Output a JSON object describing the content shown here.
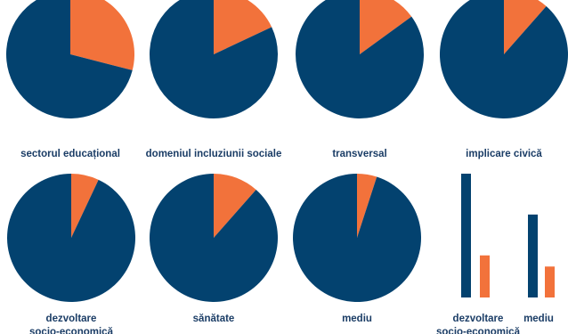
{
  "colors": {
    "primary": "#03426f",
    "accent": "#f2723b"
  },
  "chart_data": [
    {
      "type": "pie",
      "label": "sectorul educațional",
      "slices": [
        {
          "name": "orange",
          "value": 0.29
        },
        {
          "name": "blue",
          "value": 0.71
        }
      ]
    },
    {
      "type": "pie",
      "label": "domeniul incluziunii sociale",
      "slices": [
        {
          "name": "orange",
          "value": 0.18
        },
        {
          "name": "blue",
          "value": 0.82
        }
      ]
    },
    {
      "type": "pie",
      "label": "transversal",
      "slices": [
        {
          "name": "orange",
          "value": 0.15
        },
        {
          "name": "blue",
          "value": 0.85
        }
      ]
    },
    {
      "type": "pie",
      "label": "implicare civică",
      "slices": [
        {
          "name": "orange",
          "value": 0.115
        },
        {
          "name": "blue",
          "value": 0.885
        }
      ]
    },
    {
      "type": "pie",
      "label_lines": [
        "dezvoltare",
        "socio-economică"
      ],
      "slices": [
        {
          "name": "orange",
          "value": 0.07
        },
        {
          "name": "blue",
          "value": 0.93
        }
      ]
    },
    {
      "type": "pie",
      "label": "sănătate",
      "slices": [
        {
          "name": "orange",
          "value": 0.115
        },
        {
          "name": "blue",
          "value": 0.885
        }
      ]
    },
    {
      "type": "pie",
      "label": "mediu",
      "slices": [
        {
          "name": "orange",
          "value": 0.05
        },
        {
          "name": "blue",
          "value": 0.95
        }
      ]
    },
    {
      "type": "bar",
      "categories": [
        {
          "label_lines": [
            "dezvoltare",
            "socio-economică"
          ]
        },
        {
          "label_lines": [
            "mediu"
          ]
        }
      ],
      "series": [
        {
          "values": [
            1.0,
            0.67
          ],
          "color": "#03426f"
        },
        {
          "values": [
            0.34,
            0.25
          ],
          "color": "#f2723b"
        }
      ],
      "ylim": [
        0,
        1
      ]
    }
  ]
}
